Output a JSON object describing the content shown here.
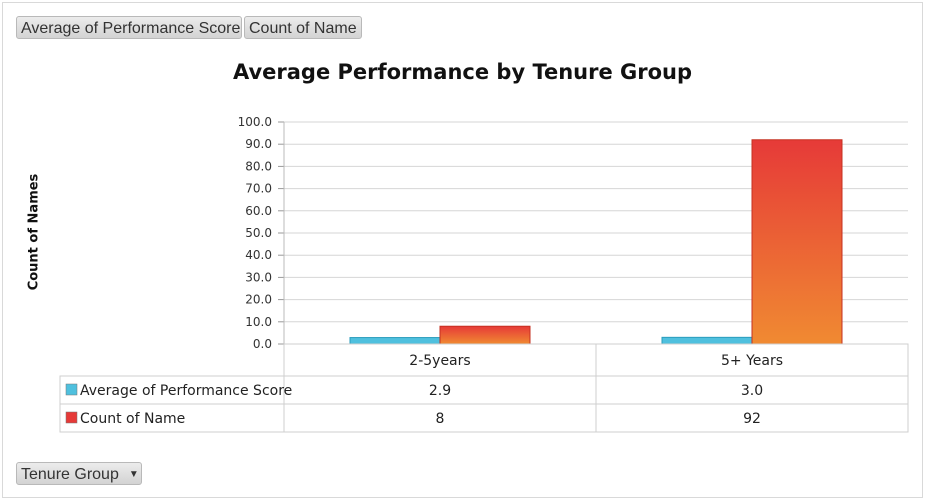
{
  "field_buttons": {
    "value_1": "Average of Performance Score",
    "value_2": "Count of Name",
    "axis_field": "Tenure Group"
  },
  "colors": {
    "series_1": "#4fc0de",
    "series_2_top": "#e63a38",
    "series_2_bottom": "#f08a32",
    "grid": "#d6d6d6"
  },
  "chart_data": {
    "type": "bar",
    "title": "Average Performance by Tenure Group",
    "xlabel": "",
    "ylabel": "Count of Names",
    "ylim": [
      0,
      100
    ],
    "yticks": [
      "0.0",
      "10.0",
      "20.0",
      "30.0",
      "40.0",
      "50.0",
      "60.0",
      "70.0",
      "80.0",
      "90.0",
      "100.0"
    ],
    "categories": [
      "2-5years",
      "5+ Years"
    ],
    "series": [
      {
        "name": "Average of Performance Score",
        "values": [
          2.9,
          3.0
        ],
        "labels": [
          "2.9",
          "3.0"
        ]
      },
      {
        "name": "Count of Name",
        "values": [
          8,
          92
        ],
        "labels": [
          "8",
          "92"
        ]
      }
    ],
    "grid": true,
    "legend": "data-table"
  }
}
